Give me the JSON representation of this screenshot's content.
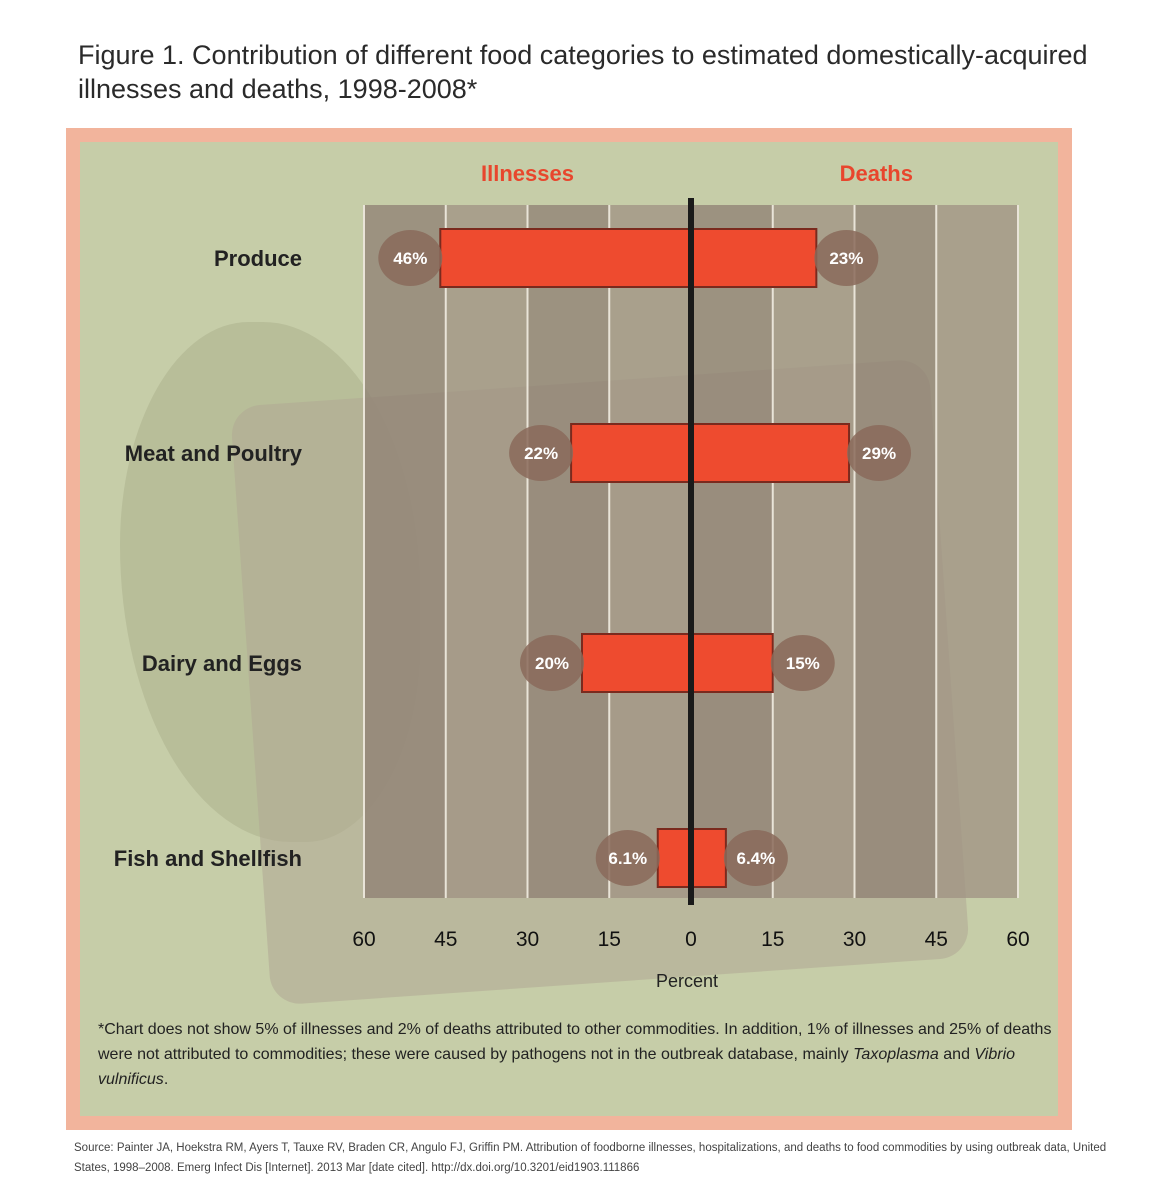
{
  "title": "Figure 1.  Contribution of different food categories to estimated domestically-acquired illnesses and deaths, 1998-2008*",
  "footnote": {
    "main": "*Chart does not show 5% of illnesses and 2% of deaths attributed to other commodities. In addition, 1% of illnesses and 25% of deaths were not attributed to commodities; these were caused by pathogens not in the outbreak database, mainly",
    "italic1": "Taxoplasma",
    "and": "and",
    "italic2": "Vibrio vulnificus",
    "end": "."
  },
  "source": "Source: Painter JA, Hoekstra RM, Ayers T, Tauxe RV, Braden CR, Angulo FJ, Griffin PM. Attribution of foodborne illnesses, hospitalizations, and deaths to food commodities by using outbreak data, United States, 1998–2008. Emerg Infect Dis [Internet]. 2013 Mar [date cited]. http://dx.doi.org/10.3201/eid1903.111866",
  "colors": {
    "bar": "#ee4b2f",
    "bar_stroke": "#7a2a1e",
    "header": "#e8462d",
    "plot_band_dark": "#8f8275",
    "plot_band_light": "#a09384",
    "label_bubble": "#8a6a5a",
    "center_line": "#1a1a1a"
  },
  "chart_data": {
    "type": "bar",
    "orientation": "horizontal-diverging",
    "left_series_name": "Illnesses",
    "right_series_name": "Deaths",
    "categories": [
      "Produce",
      "Meat and Poultry",
      "Dairy and Eggs",
      "Fish and Shellfish"
    ],
    "series": [
      {
        "name": "Illnesses",
        "values": [
          46,
          22,
          20,
          6.1
        ],
        "labels": [
          "46%",
          "22%",
          "20%",
          "6.1%"
        ]
      },
      {
        "name": "Deaths",
        "values": [
          23,
          29,
          15,
          6.4
        ],
        "labels": [
          "23%",
          "29%",
          "15%",
          "6.4%"
        ]
      }
    ],
    "xlabel": "Percent",
    "xlim": [
      -60,
      60
    ],
    "ticks": [
      -60,
      -45,
      -30,
      -15,
      0,
      15,
      30,
      45,
      60
    ],
    "tick_labels": [
      "60",
      "45",
      "30",
      "15",
      "0",
      "15",
      "30",
      "45",
      "60"
    ],
    "grid": true
  }
}
